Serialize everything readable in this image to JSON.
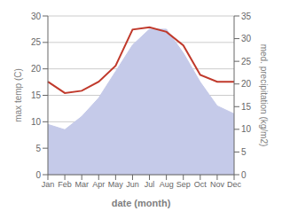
{
  "chart_data": {
    "type": "line",
    "xlabel": "date (month)",
    "ylabel": "max temp (C)",
    "y2label": "med. precipitation (kg/m2)",
    "categories": [
      "Jan",
      "Feb",
      "Mar",
      "Apr",
      "May",
      "Jun",
      "Jul",
      "Aug",
      "Sep",
      "Oct",
      "Nov",
      "Dec"
    ],
    "series": [
      {
        "type": "area",
        "color": "#c5cae9",
        "values": [
          9.5,
          8.5,
          11.0,
          14.5,
          19.5,
          24.5,
          27.5,
          27.5,
          23.0,
          17.5,
          13.0,
          11.5
        ]
      },
      {
        "type": "line",
        "axis": "y2",
        "color": "#c0392b",
        "values": [
          20.5,
          18.0,
          18.5,
          20.5,
          24.0,
          32.0,
          32.5,
          31.5,
          28.5,
          22.0,
          20.5,
          20.5
        ]
      }
    ],
    "ylim": [
      0,
      30
    ],
    "yticks": [
      0,
      5,
      10,
      15,
      20,
      25,
      30
    ],
    "y2lim": [
      0,
      35
    ],
    "y2ticks": [
      0,
      5,
      10,
      15,
      20,
      25,
      30,
      35
    ],
    "grid": true
  }
}
